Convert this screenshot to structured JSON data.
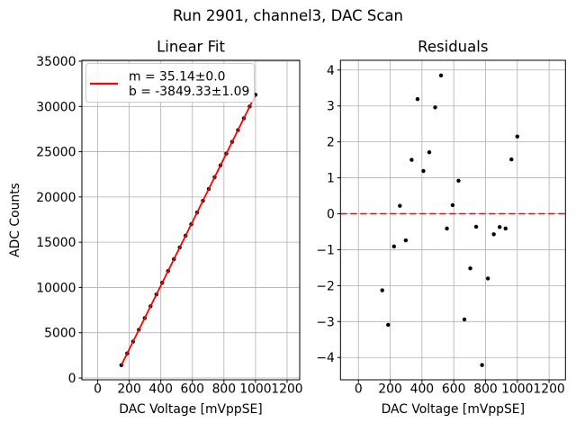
{
  "figure": {
    "title": "Run 2901, channel3, DAC Scan",
    "background": "#ffffff"
  },
  "colors": {
    "fit_line": "#ff0000",
    "zero_line": "#ff0000",
    "marker": "#000000",
    "grid": "#b0b0b0",
    "spine": "#000000",
    "legend_border": "#cccccc",
    "text": "#000000"
  },
  "chart_data": [
    {
      "type": "scatter",
      "title": "Linear Fit",
      "xlabel": "DAC Voltage [mVppSE]",
      "ylabel": "ADC Counts",
      "grid": true,
      "xlim": [
        -100,
        1280
      ],
      "ylim": [
        -200,
        35100
      ],
      "xticks": [
        0,
        200,
        400,
        600,
        800,
        1000,
        1200
      ],
      "yticks": [
        0,
        5000,
        10000,
        15000,
        20000,
        25000,
        30000,
        35000
      ],
      "legend": {
        "position": "upper left",
        "lines": [
          "m = 35.14±0.0",
          "b = -3849.33±1.09"
        ]
      },
      "fit": {
        "m": 35.14,
        "m_err": 0.0,
        "b": -3849.33,
        "b_err": 1.09,
        "x_range": [
          150,
          1000
        ]
      },
      "x": [
        150,
        187,
        224,
        261,
        298,
        335,
        372,
        409,
        446,
        483,
        520,
        557,
        593,
        630,
        667,
        704,
        741,
        778,
        815,
        852,
        889,
        926,
        963,
        1000
      ],
      "y": [
        1419.5,
        2718.8,
        4021.1,
        5322.4,
        6621.7,
        7924.1,
        9225.9,
        10524.1,
        11824.8,
        13126.3,
        14427.3,
        15723.2,
        16988.9,
        18289.8,
        19586.1,
        20887.7,
        22189.1,
        23485.4,
        24788.0,
        26089.4,
        27389.8,
        28689.9,
        29992.0,
        31292.8
      ]
    },
    {
      "type": "scatter",
      "title": "Residuals",
      "xlabel": "DAC Voltage [mVppSE]",
      "ylabel": "",
      "grid": true,
      "zero_line": true,
      "xlim": [
        -113,
        1303
      ],
      "ylim": [
        -4.62,
        4.27
      ],
      "xticks": [
        0,
        200,
        400,
        600,
        800,
        1000,
        1200
      ],
      "yticks": [
        -4,
        -3,
        -2,
        -1,
        0,
        1,
        2,
        3,
        4
      ],
      "x": [
        150,
        187,
        224,
        261,
        298,
        335,
        372,
        409,
        446,
        483,
        520,
        557,
        593,
        630,
        667,
        704,
        741,
        778,
        815,
        852,
        889,
        926,
        963,
        1000
      ],
      "y": [
        -2.13,
        -3.09,
        -0.91,
        0.22,
        -0.74,
        1.5,
        3.19,
        1.19,
        1.71,
        2.96,
        3.85,
        -0.41,
        0.24,
        0.92,
        -2.94,
        -1.52,
        -0.36,
        -4.21,
        -1.8,
        -0.57,
        -0.37,
        -0.41,
        1.51,
        2.15
      ]
    }
  ]
}
